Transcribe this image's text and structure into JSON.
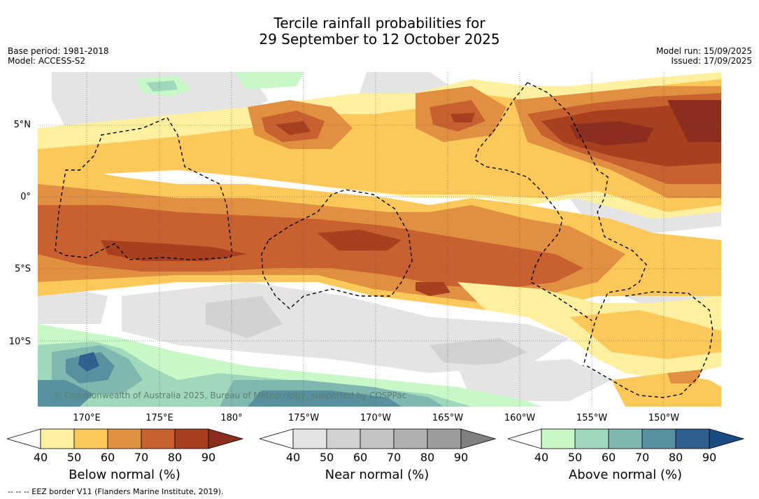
{
  "title_line1": "Tercile rainfall probabilities for",
  "title_line2": "29 September to 12 October 2025",
  "base_period": "Base period: 1981-2018",
  "model": "Model: ACCESS-S2",
  "model_run": "Model run: 15/09/2025",
  "issued": "Issued: 17/09/2025",
  "copyright": "© Commonwealth of Australia 2025, Bureau of Meteorology, supported by COSPPac",
  "lat_labels": [
    "5°N",
    "0°",
    "5°S",
    "10°S"
  ],
  "lon_labels": [
    "170°E",
    "175°E",
    "180°",
    "175°W",
    "170°W",
    "165°W",
    "160°W",
    "155°W",
    "150°W"
  ],
  "colorbars": [
    {
      "label": "Below normal (%)",
      "ticks": [
        "40",
        "50",
        "60",
        "70",
        "80",
        "90"
      ],
      "colors": [
        "#fff0a0",
        "#fcc85a",
        "#e09040",
        "#c86030",
        "#a84020",
        "#8c2e1e"
      ]
    },
    {
      "label": "Near normal (%)",
      "ticks": [
        "40",
        "50",
        "60",
        "70",
        "80",
        "90"
      ],
      "colors": [
        "#e4e4e4",
        "#d2d2d2",
        "#c4c4c4",
        "#b0b0b0",
        "#9c9c9c",
        "#808080"
      ]
    },
    {
      "label": "Above normal (%)",
      "ticks": [
        "40",
        "50",
        "60",
        "70",
        "80",
        "90"
      ],
      "colors": [
        "#c8f8c8",
        "#a0d8bc",
        "#80b8b0",
        "#5890a0",
        "#306090",
        "#1a4c84"
      ]
    }
  ],
  "footnote": "--  --  -- EEZ border V11 (Flanders Marine Institute, 2019)."
}
